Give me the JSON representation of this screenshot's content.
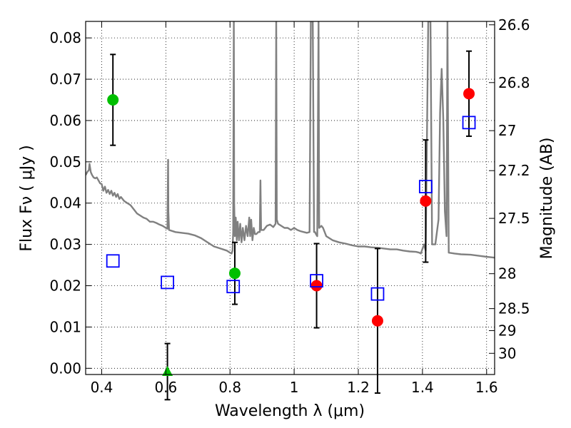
{
  "chart_data": {
    "type": "scatter",
    "xlabel": "Wavelength  λ (μm)",
    "ylabel": "Flux  Fν  ( μJy )",
    "y2label": "Magnitude (AB)",
    "xlim": [
      0.35,
      1.625
    ],
    "ylim": [
      -0.0015,
      0.084
    ],
    "grid": true,
    "x_ticks": [
      {
        "v": 0.4,
        "label": "0.4"
      },
      {
        "v": 0.6,
        "label": "0.6"
      },
      {
        "v": 0.8,
        "label": "0.8"
      },
      {
        "v": 1.0,
        "label": "1"
      },
      {
        "v": 1.2,
        "label": "1.2"
      },
      {
        "v": 1.4,
        "label": "1.4"
      },
      {
        "v": 1.6,
        "label": "1.6"
      }
    ],
    "y_ticks": [
      {
        "v": 0.0,
        "label": "0.00"
      },
      {
        "v": 0.01,
        "label": "0.01"
      },
      {
        "v": 0.02,
        "label": "0.02"
      },
      {
        "v": 0.03,
        "label": "0.03"
      },
      {
        "v": 0.04,
        "label": "0.04"
      },
      {
        "v": 0.05,
        "label": "0.05"
      },
      {
        "v": 0.06,
        "label": "0.06"
      },
      {
        "v": 0.07,
        "label": "0.07"
      },
      {
        "v": 0.08,
        "label": "0.08"
      }
    ],
    "y2_ticks": [
      {
        "mag": 26.6,
        "label": "26.6"
      },
      {
        "mag": 26.8,
        "label": "26.8"
      },
      {
        "mag": 27.0,
        "label": "27"
      },
      {
        "mag": 27.2,
        "label": "27.2"
      },
      {
        "mag": 27.5,
        "label": "27.5"
      },
      {
        "mag": 28.0,
        "label": "28"
      },
      {
        "mag": 28.5,
        "label": "28.5"
      },
      {
        "mag": 29.0,
        "label": "29"
      },
      {
        "mag": 30.0,
        "label": "30"
      }
    ],
    "series": [
      {
        "marker": "line",
        "color": "#808080",
        "points": [
          [
            0.35,
            0.0468
          ],
          [
            0.355,
            0.0475
          ],
          [
            0.36,
            0.048
          ],
          [
            0.362,
            0.0495
          ],
          [
            0.366,
            0.0475
          ],
          [
            0.37,
            0.0468
          ],
          [
            0.375,
            0.0462
          ],
          [
            0.38,
            0.046
          ],
          [
            0.385,
            0.0462
          ],
          [
            0.39,
            0.0455
          ],
          [
            0.395,
            0.0448
          ],
          [
            0.4,
            0.0446
          ],
          [
            0.405,
            0.043
          ],
          [
            0.41,
            0.044
          ],
          [
            0.415,
            0.0425
          ],
          [
            0.42,
            0.0432
          ],
          [
            0.425,
            0.0422
          ],
          [
            0.43,
            0.043
          ],
          [
            0.435,
            0.0418
          ],
          [
            0.44,
            0.0425
          ],
          [
            0.445,
            0.0415
          ],
          [
            0.45,
            0.0422
          ],
          [
            0.455,
            0.041
          ],
          [
            0.46,
            0.0415
          ],
          [
            0.47,
            0.0405
          ],
          [
            0.48,
            0.04
          ],
          [
            0.49,
            0.0395
          ],
          [
            0.5,
            0.0385
          ],
          [
            0.51,
            0.0375
          ],
          [
            0.52,
            0.037
          ],
          [
            0.53,
            0.0365
          ],
          [
            0.54,
            0.0362
          ],
          [
            0.55,
            0.0355
          ],
          [
            0.56,
            0.0355
          ],
          [
            0.57,
            0.0352
          ],
          [
            0.58,
            0.0348
          ],
          [
            0.59,
            0.0345
          ],
          [
            0.6,
            0.034
          ],
          [
            0.605,
            0.0338
          ],
          [
            0.606,
            0.0405
          ],
          [
            0.607,
            0.0505
          ],
          [
            0.608,
            0.038
          ],
          [
            0.61,
            0.0335
          ],
          [
            0.63,
            0.033
          ],
          [
            0.65,
            0.0328
          ],
          [
            0.67,
            0.0326
          ],
          [
            0.69,
            0.0322
          ],
          [
            0.71,
            0.0315
          ],
          [
            0.73,
            0.0305
          ],
          [
            0.75,
            0.0295
          ],
          [
            0.77,
            0.029
          ],
          [
            0.79,
            0.0285
          ],
          [
            0.8,
            0.028
          ],
          [
            0.805,
            0.0278
          ],
          [
            0.808,
            0.0285
          ],
          [
            0.81,
            0.033
          ],
          [
            0.812,
            0.084
          ],
          [
            0.813,
            0.04
          ],
          [
            0.815,
            0.032
          ],
          [
            0.818,
            0.0365
          ],
          [
            0.821,
            0.031
          ],
          [
            0.824,
            0.0355
          ],
          [
            0.828,
            0.031
          ],
          [
            0.832,
            0.035
          ],
          [
            0.836,
            0.0305
          ],
          [
            0.84,
            0.034
          ],
          [
            0.845,
            0.031
          ],
          [
            0.85,
            0.0345
          ],
          [
            0.855,
            0.032
          ],
          [
            0.86,
            0.0365
          ],
          [
            0.863,
            0.032
          ],
          [
            0.866,
            0.036
          ],
          [
            0.87,
            0.031
          ],
          [
            0.874,
            0.034
          ],
          [
            0.878,
            0.0325
          ],
          [
            0.882,
            0.0325
          ],
          [
            0.888,
            0.033
          ],
          [
            0.893,
            0.033
          ],
          [
            0.895,
            0.0455
          ],
          [
            0.897,
            0.0335
          ],
          [
            0.905,
            0.0335
          ],
          [
            0.915,
            0.0345
          ],
          [
            0.925,
            0.0348
          ],
          [
            0.935,
            0.0342
          ],
          [
            0.942,
            0.035
          ],
          [
            0.944,
            0.084
          ],
          [
            0.946,
            0.036
          ],
          [
            0.95,
            0.035
          ],
          [
            0.96,
            0.0345
          ],
          [
            0.97,
            0.034
          ],
          [
            0.98,
            0.034
          ],
          [
            0.99,
            0.0335
          ],
          [
            1.0,
            0.034
          ],
          [
            1.01,
            0.0335
          ],
          [
            1.02,
            0.0332
          ],
          [
            1.03,
            0.033
          ],
          [
            1.04,
            0.0328
          ],
          [
            1.048,
            0.033
          ],
          [
            1.052,
            0.084
          ],
          [
            1.058,
            0.084
          ],
          [
            1.062,
            0.033
          ],
          [
            1.065,
            0.033
          ],
          [
            1.068,
            0.0325
          ],
          [
            1.072,
            0.032
          ],
          [
            1.076,
            0.084
          ],
          [
            1.078,
            0.034
          ],
          [
            1.085,
            0.0345
          ],
          [
            1.09,
            0.034
          ],
          [
            1.1,
            0.032
          ],
          [
            1.12,
            0.031
          ],
          [
            1.14,
            0.0305
          ],
          [
            1.16,
            0.0302
          ],
          [
            1.18,
            0.0298
          ],
          [
            1.2,
            0.0295
          ],
          [
            1.22,
            0.0295
          ],
          [
            1.24,
            0.0293
          ],
          [
            1.26,
            0.0292
          ],
          [
            1.28,
            0.029
          ],
          [
            1.3,
            0.0288
          ],
          [
            1.32,
            0.0288
          ],
          [
            1.34,
            0.0285
          ],
          [
            1.36,
            0.0283
          ],
          [
            1.38,
            0.0282
          ],
          [
            1.39,
            0.028
          ],
          [
            1.395,
            0.0278
          ],
          [
            1.405,
            0.03
          ],
          [
            1.41,
            0.0285
          ],
          [
            1.418,
            0.084
          ],
          [
            1.425,
            0.084
          ],
          [
            1.43,
            0.03
          ],
          [
            1.44,
            0.03
          ],
          [
            1.45,
            0.036
          ],
          [
            1.455,
            0.062
          ],
          [
            1.46,
            0.0725
          ],
          [
            1.465,
            0.06
          ],
          [
            1.47,
            0.038
          ],
          [
            1.475,
            0.032
          ],
          [
            1.478,
            0.084
          ],
          [
            1.482,
            0.028
          ],
          [
            1.5,
            0.0278
          ],
          [
            1.52,
            0.0276
          ],
          [
            1.55,
            0.0275
          ],
          [
            1.58,
            0.0272
          ],
          [
            1.6,
            0.027
          ],
          [
            1.625,
            0.0268
          ]
        ]
      },
      {
        "marker": "circle",
        "color": "#00bf00",
        "points": [
          {
            "x": 0.435,
            "y": 0.065,
            "err": 0.011
          },
          {
            "x": 0.815,
            "y": 0.023,
            "err": 0.0075
          }
        ]
      },
      {
        "marker": "triangle",
        "color": "#00bf00",
        "points": [
          {
            "x": 0.605,
            "y": -0.0008,
            "err": 0.0068
          }
        ]
      },
      {
        "marker": "circle",
        "color": "#ff0000",
        "points": [
          {
            "x": 1.07,
            "y": 0.02,
            "err": 0.0102
          },
          {
            "x": 1.26,
            "y": 0.0115,
            "err": 0.0175
          },
          {
            "x": 1.41,
            "y": 0.0405,
            "err": 0.0148
          },
          {
            "x": 1.545,
            "y": 0.0665,
            "err": 0.0103
          }
        ]
      },
      {
        "marker": "square",
        "color": "#0000ff",
        "points": [
          {
            "x": 0.435,
            "y": 0.026
          },
          {
            "x": 0.605,
            "y": 0.0208
          },
          {
            "x": 0.81,
            "y": 0.0198
          },
          {
            "x": 1.07,
            "y": 0.0212
          },
          {
            "x": 1.26,
            "y": 0.018
          },
          {
            "x": 1.41,
            "y": 0.044
          },
          {
            "x": 1.545,
            "y": 0.0595
          }
        ]
      }
    ]
  }
}
